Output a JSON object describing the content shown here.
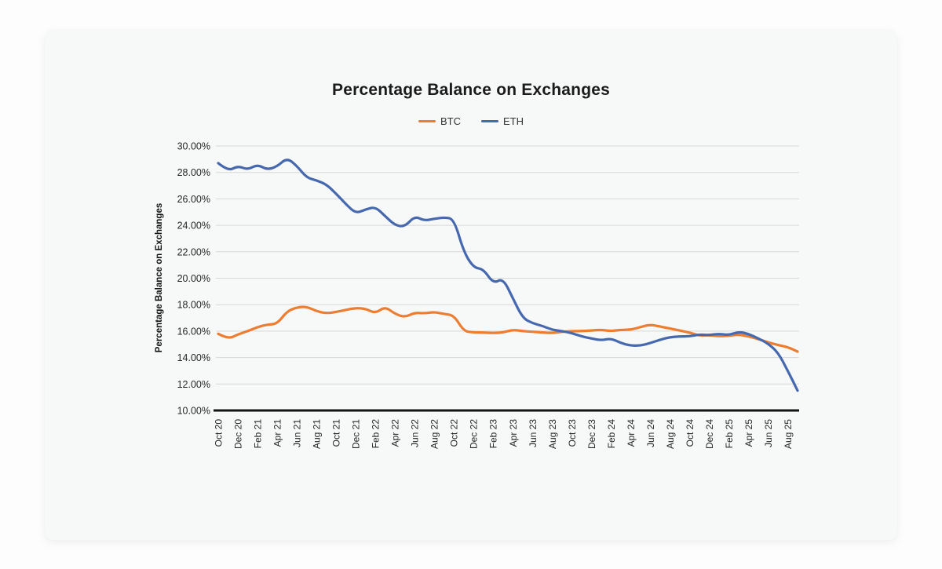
{
  "card": {
    "background": "#f7f8f8",
    "page_background": "#fdfdfd"
  },
  "chart_data": {
    "type": "line",
    "title": "Percentage Balance on Exchanges",
    "ylabel": "Percentage Balance on Exchanges",
    "xlabel": "",
    "ylim": [
      10,
      30
    ],
    "y_tick_step": 2,
    "y_tick_labels": [
      "30.00%",
      "28.00%",
      "26.00%",
      "24.00%",
      "22.00%",
      "20.00%",
      "18.00%",
      "16.00%",
      "14.00%",
      "12.00%",
      "10.00%"
    ],
    "grid": "horizontal",
    "gridline_color": "#d8d8d8",
    "axis_line_color": "#141414",
    "legend_position": "top",
    "x_tick_interval": 2,
    "months": [
      "Oct 20",
      "Nov 20",
      "Dec 20",
      "Jan 21",
      "Feb 21",
      "Mar 21",
      "Apr 21",
      "May 21",
      "Jun 21",
      "Jul 21",
      "Aug 21",
      "Sep 21",
      "Oct 21",
      "Nov 21",
      "Dec 21",
      "Jan 22",
      "Feb 22",
      "Mar 22",
      "Apr 22",
      "May 22",
      "Jun 22",
      "Jul 22",
      "Aug 22",
      "Sep 22",
      "Oct 22",
      "Nov 22",
      "Dec 22",
      "Jan 23",
      "Feb 23",
      "Mar 23",
      "Apr 23",
      "May 23",
      "Jun 23",
      "Jul 23",
      "Aug 23",
      "Sep 23",
      "Oct 23",
      "Nov 23",
      "Dec 23",
      "Jan 24",
      "Feb 24",
      "Mar 24",
      "Apr 24",
      "May 24",
      "Jun 24",
      "Jul 24",
      "Aug 24",
      "Sep 24",
      "Oct 24",
      "Nov 24",
      "Dec 24",
      "Jan 25",
      "Feb 25",
      "Mar 25",
      "Apr 25",
      "May 25",
      "Jun 25",
      "Jul 25",
      "Aug 25",
      "Sep 25"
    ],
    "series": [
      {
        "name": "BTC",
        "color": "#ed7d31",
        "values": [
          15.8,
          15.4,
          15.75,
          16.0,
          16.3,
          16.5,
          16.55,
          17.5,
          17.8,
          17.85,
          17.5,
          17.35,
          17.45,
          17.6,
          17.75,
          17.7,
          17.35,
          17.85,
          17.3,
          17.05,
          17.4,
          17.35,
          17.45,
          17.3,
          17.2,
          16.0,
          15.9,
          15.9,
          15.85,
          15.9,
          16.1,
          16.0,
          15.95,
          15.9,
          15.85,
          15.95,
          16.0,
          16.0,
          16.05,
          16.1,
          16.0,
          16.1,
          16.1,
          16.3,
          16.5,
          16.35,
          16.2,
          16.05,
          15.9,
          15.65,
          15.7,
          15.6,
          15.65,
          15.75,
          15.6,
          15.4,
          15.15,
          14.95,
          14.8,
          14.45
        ]
      },
      {
        "name": "ETH",
        "color": "#4568ae",
        "values": [
          28.7,
          28.1,
          28.5,
          28.2,
          28.6,
          28.2,
          28.45,
          29.1,
          28.5,
          27.6,
          27.4,
          27.1,
          26.4,
          25.6,
          24.9,
          25.2,
          25.4,
          24.7,
          24.0,
          23.9,
          24.7,
          24.35,
          24.5,
          24.6,
          24.5,
          22.0,
          20.8,
          20.7,
          19.6,
          20.0,
          18.5,
          17.0,
          16.6,
          16.4,
          16.1,
          16.0,
          15.85,
          15.6,
          15.45,
          15.3,
          15.45,
          15.1,
          14.9,
          14.9,
          15.1,
          15.35,
          15.55,
          15.6,
          15.6,
          15.75,
          15.7,
          15.8,
          15.7,
          15.95,
          15.8,
          15.45,
          15.05,
          14.4,
          13.0,
          11.5
        ]
      }
    ]
  }
}
